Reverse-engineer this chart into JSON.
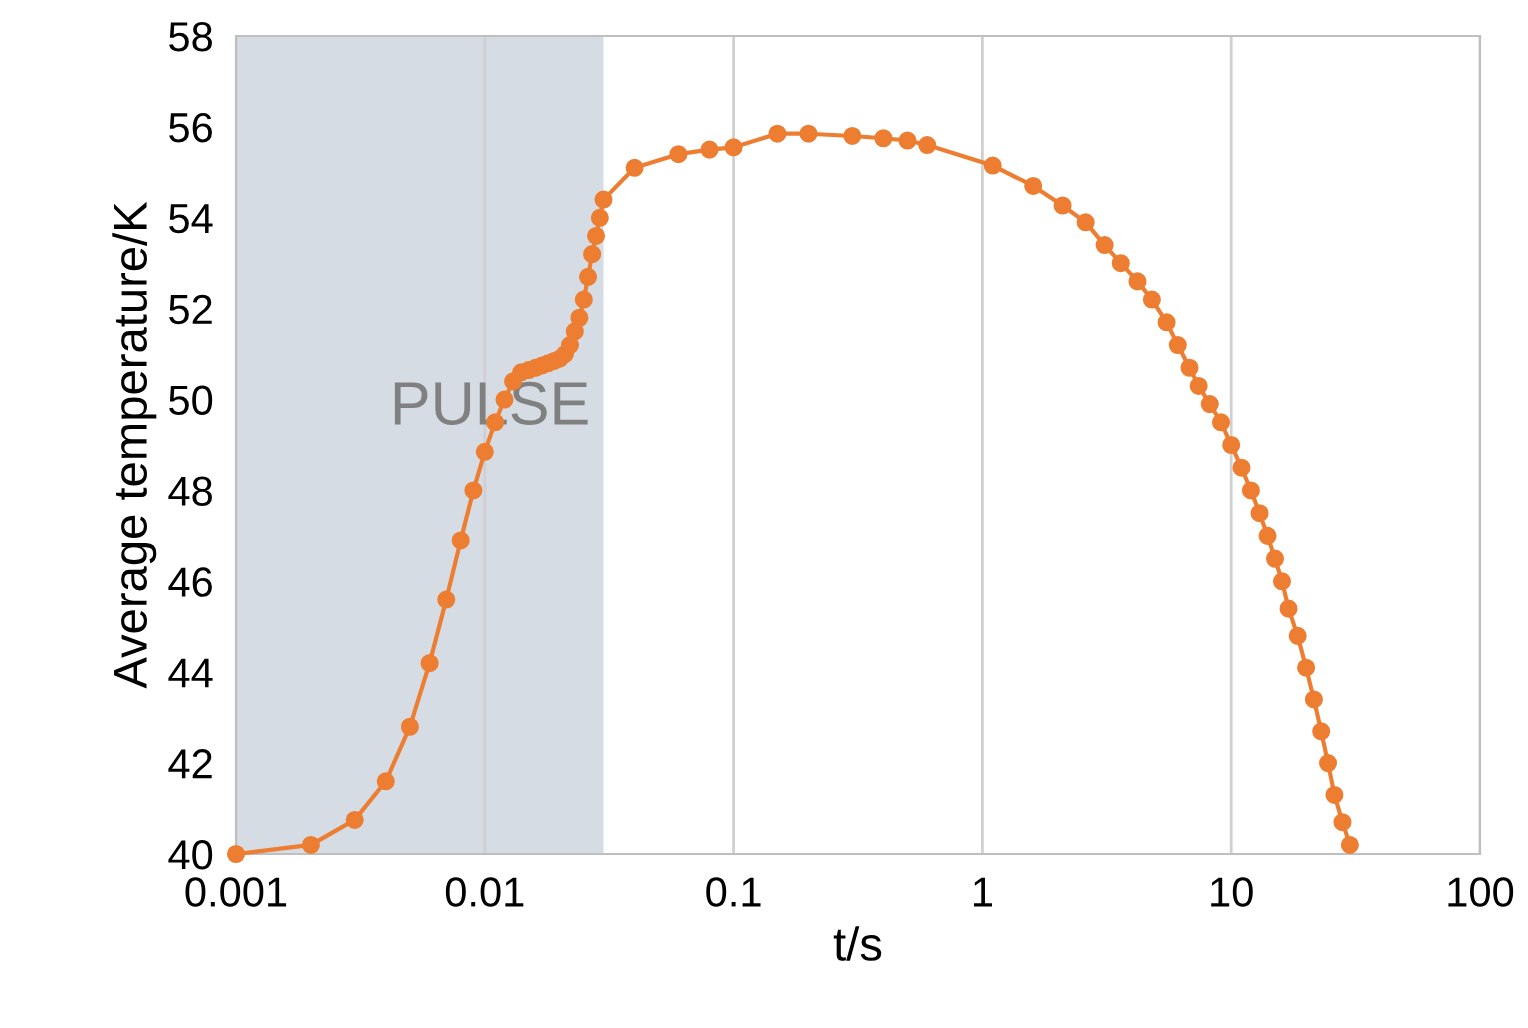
{
  "chart_data": {
    "type": "line",
    "xlabel": "t/s",
    "ylabel": "Average temperature/K",
    "x": [
      0.001,
      0.002,
      0.003,
      0.004,
      0.005,
      0.006,
      0.007,
      0.008,
      0.009,
      0.01,
      0.011,
      0.012,
      0.013,
      0.014,
      0.015,
      0.016,
      0.017,
      0.018,
      0.019,
      0.02,
      0.021,
      0.022,
      0.023,
      0.024,
      0.025,
      0.026,
      0.027,
      0.028,
      0.029,
      0.03,
      0.04,
      0.06,
      0.08,
      0.1,
      0.15,
      0.2,
      0.3,
      0.4,
      0.5,
      0.6,
      1.1,
      1.6,
      2.1,
      2.6,
      3.1,
      3.6,
      4.2,
      4.8,
      5.5,
      6.1,
      6.8,
      7.4,
      8.2,
      9.1,
      10,
      11,
      12,
      13,
      14,
      15,
      16,
      17,
      18.5,
      20,
      21.5,
      23,
      24.5,
      26,
      28,
      30
    ],
    "series": [
      {
        "color": "#ed7d31",
        "values": [
          40.0,
          40.2,
          40.75,
          41.6,
          42.8,
          44.2,
          45.6,
          46.9,
          48.0,
          48.85,
          49.5,
          50.0,
          50.4,
          50.6,
          50.65,
          50.7,
          50.75,
          50.8,
          50.85,
          50.9,
          51.0,
          51.2,
          51.5,
          51.8,
          52.2,
          52.7,
          53.2,
          53.6,
          54.0,
          54.4,
          55.1,
          55.4,
          55.5,
          55.55,
          55.85,
          55.85,
          55.8,
          55.75,
          55.7,
          55.6,
          55.15,
          54.7,
          54.27,
          53.9,
          53.4,
          53.0,
          52.6,
          52.2,
          51.7,
          51.2,
          50.7,
          50.3,
          49.9,
          49.5,
          49.0,
          48.5,
          48.0,
          47.5,
          47.0,
          46.5,
          46.0,
          45.4,
          44.8,
          44.1,
          43.4,
          42.7,
          42.0,
          41.3,
          40.7,
          40.2
        ]
      }
    ],
    "log": "x",
    "xlim": [
      0.001,
      100
    ],
    "xticks": [
      {
        "value": 0.001,
        "label": "0.001"
      },
      {
        "value": 0.01,
        "label": "0.01"
      },
      {
        "value": 0.1,
        "label": "0.1"
      },
      {
        "value": 1,
        "label": "1"
      },
      {
        "value": 10,
        "label": "10"
      },
      {
        "value": 100,
        "label": "100"
      }
    ],
    "ylim": [
      40,
      58
    ],
    "yticks": [
      40,
      42,
      44,
      46,
      48,
      50,
      52,
      54,
      56,
      58
    ],
    "grid": "x",
    "marker": "circle",
    "line_style": "solid",
    "bands": [
      {
        "axis": "x",
        "from": 0.001,
        "to": 0.03,
        "label": "PULSE",
        "color": "#d5dce4"
      }
    ]
  }
}
